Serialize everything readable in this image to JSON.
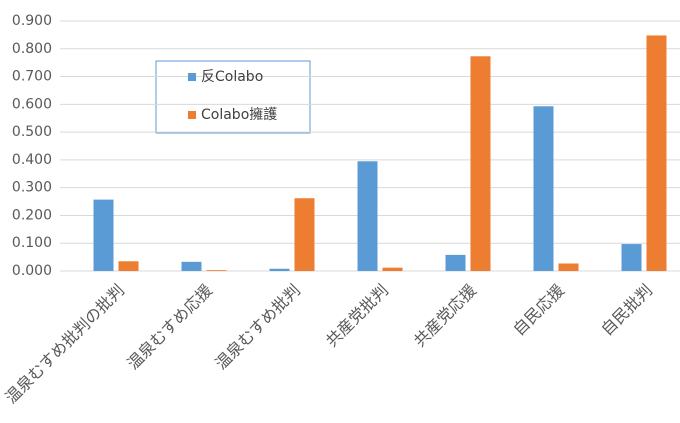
{
  "chart_data": {
    "type": "bar",
    "categories": [
      "温泉むすめ批判の批判",
      "温泉むすめ応援",
      "温泉むすめ批判",
      "共産党批判",
      "共産党応援",
      "自民応援",
      "自民批判"
    ],
    "series": [
      {
        "name": "反Colabo",
        "color": "#5b9bd5",
        "values": [
          0.257,
          0.033,
          0.008,
          0.395,
          0.058,
          0.593,
          0.097
        ]
      },
      {
        "name": "Colabo擁護",
        "color": "#ed7d31",
        "values": [
          0.035,
          0.003,
          0.262,
          0.012,
          0.773,
          0.027,
          0.848
        ]
      }
    ],
    "ylim": [
      0,
      0.9
    ],
    "yticks": [
      {
        "value": 0,
        "label": "0.000"
      },
      {
        "value": 0.1,
        "label": "0.100"
      },
      {
        "value": 0.2,
        "label": "0.200"
      },
      {
        "value": 0.3,
        "label": "0.300"
      },
      {
        "value": 0.4,
        "label": "0.400"
      },
      {
        "value": 0.5,
        "label": "0.500"
      },
      {
        "value": 0.6,
        "label": "0.600"
      },
      {
        "value": 0.7,
        "label": "0.700"
      },
      {
        "value": 0.8,
        "label": "0.800"
      },
      {
        "value": 0.9,
        "label": "0.900"
      }
    ],
    "grid": true
  }
}
